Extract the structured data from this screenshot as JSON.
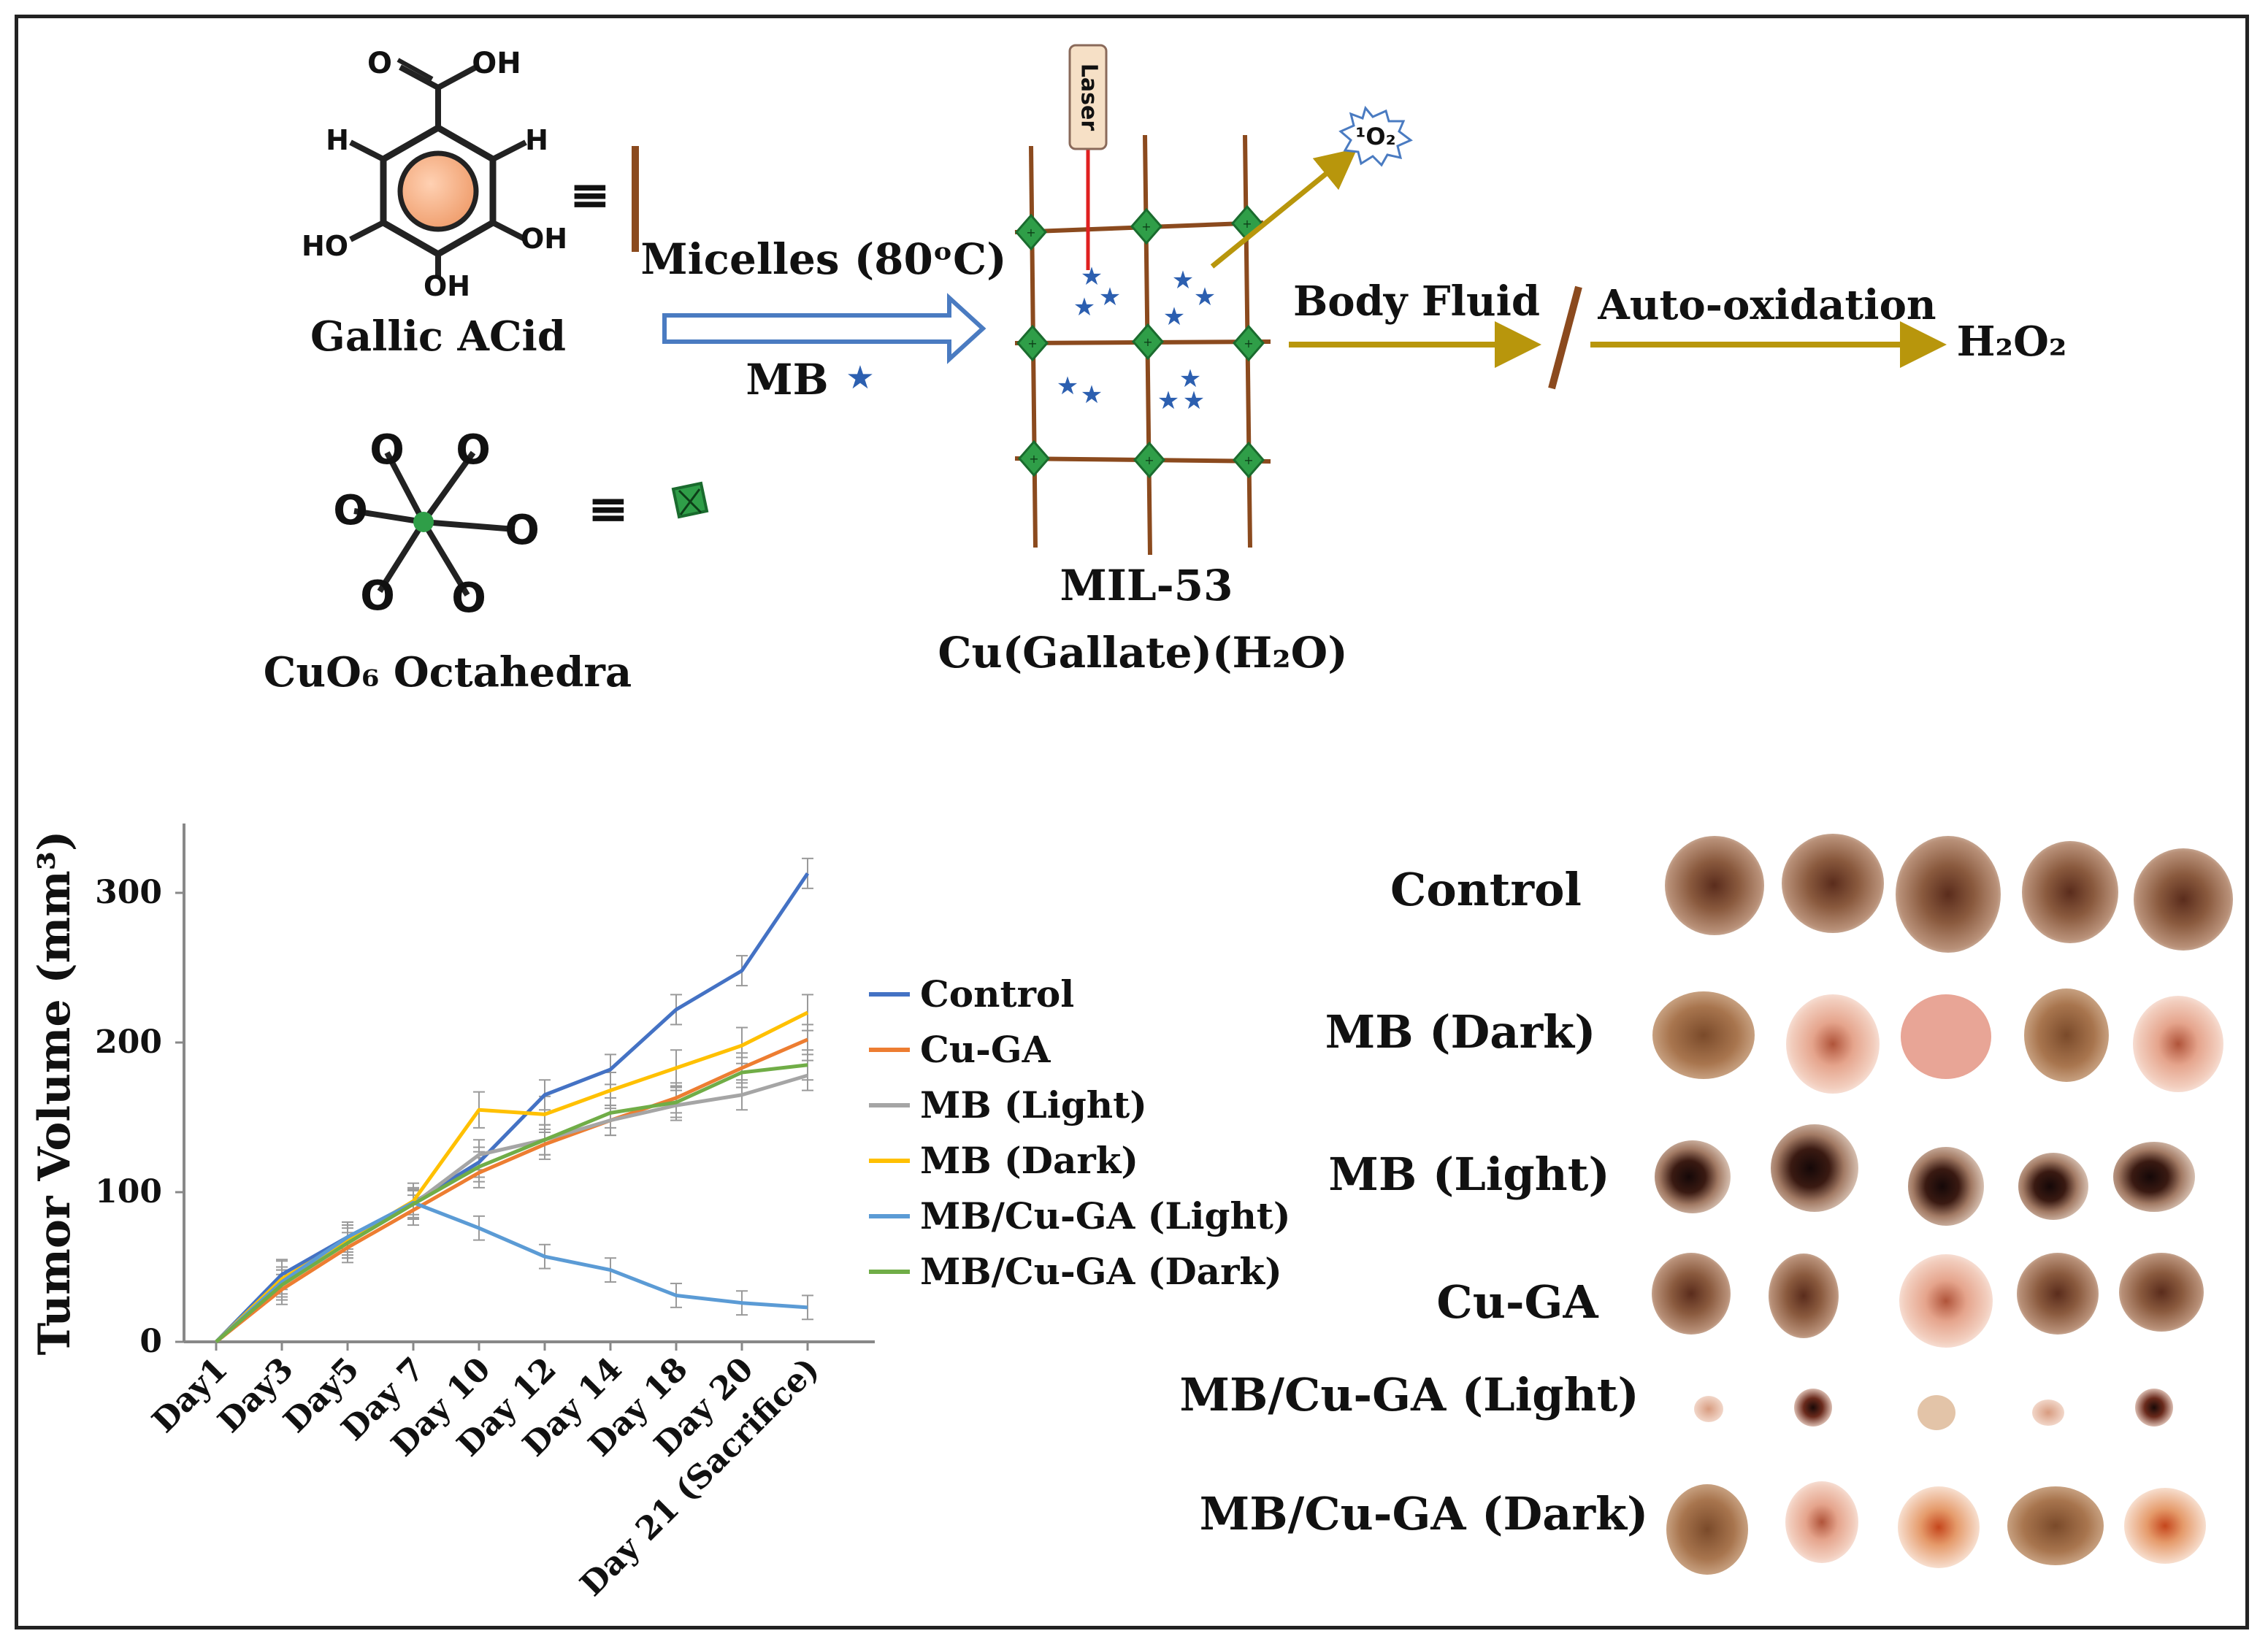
{
  "scheme": {
    "gallic_acid_label": "Gallic ACid",
    "gallic_atoms": {
      "o": "O",
      "oh_top": "OH",
      "h_left": "H",
      "h_right": "H",
      "ho_left": "HO",
      "oh_right": "OH",
      "oh_bottom": "OH"
    },
    "cuo6_label": "CuO₆ Octahedra",
    "cuo6_atom": "O",
    "equiv_symbol": "≡",
    "micelles_label": "Micelles (80ᵒC)",
    "mb_label": "MB",
    "laser_label": "Laser",
    "singlet_oxygen_label": "¹O₂",
    "mil53_label": "MIL-53",
    "cu_gallate_label": "Cu(Gallate)(H₂O)",
    "body_fluid_label": "Body Fluid",
    "auto_oxidation_label": "Auto-oxidation",
    "h2o2_label": "H₂O₂",
    "colors": {
      "arrow_gold": "#b8960c",
      "linker_brown": "#8b4a1e",
      "node_green": "#2f9e48",
      "mb_star": "#2c5fb0",
      "outline_arrow": "#4a7bc1"
    }
  },
  "chart_data": {
    "type": "line",
    "ylabel": "Tumor Volume (mm³)",
    "categories": [
      "Day1",
      "Day3",
      "Day5",
      "Day 7",
      "Day 10",
      "Day 12",
      "Day 14",
      "Day 18",
      "Day 20",
      "Day 21 (Sacrifice)"
    ],
    "yticks": [
      "0",
      "100",
      "200",
      "300"
    ],
    "ylim": [
      0,
      350
    ],
    "series": [
      {
        "name": "Control",
        "color": "#4472c4",
        "values": [
          0,
          45,
          70,
          93,
          120,
          165,
          182,
          222,
          248,
          313
        ],
        "error": 10
      },
      {
        "name": "Cu-GA",
        "color": "#ed7d31",
        "values": [
          0,
          35,
          63,
          88,
          113,
          132,
          148,
          163,
          183,
          202
        ],
        "error": 10
      },
      {
        "name": "MB (Light)",
        "color": "#a5a5a5",
        "values": [
          0,
          40,
          68,
          92,
          125,
          135,
          148,
          158,
          165,
          178
        ],
        "error": 10
      },
      {
        "name": "MB (Dark)",
        "color": "#ffc000",
        "values": [
          0,
          42,
          68,
          94,
          155,
          152,
          168,
          183,
          198,
          220
        ],
        "error": 12
      },
      {
        "name": "MB/Cu-GA (Light)",
        "color": "#5b9bd5",
        "values": [
          0,
          40,
          70,
          93,
          76,
          57,
          48,
          31,
          26,
          23
        ],
        "error": 8
      },
      {
        "name": "MB/Cu-GA (Dark)",
        "color": "#70ad47",
        "values": [
          0,
          38,
          66,
          92,
          117,
          135,
          153,
          160,
          180,
          185
        ],
        "error": 10
      }
    ]
  },
  "tumor_photos": {
    "rows": [
      {
        "label": "Control"
      },
      {
        "label": "MB (Dark)"
      },
      {
        "label": "MB (Light)"
      },
      {
        "label": "Cu-GA"
      },
      {
        "label": "MB/Cu-GA (Light)"
      },
      {
        "label": "MB/Cu-GA (Dark)"
      }
    ]
  }
}
